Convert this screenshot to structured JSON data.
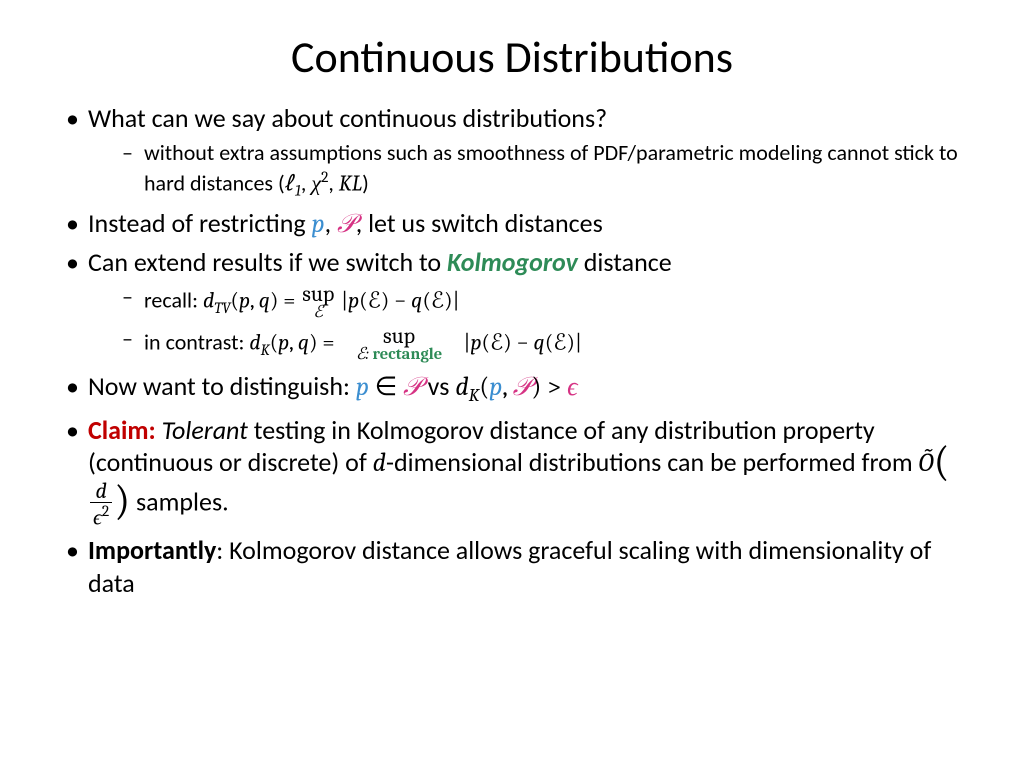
{
  "title": "Continuous Distributions",
  "b1": {
    "text": "What can we say about continuous distributions?",
    "sub1_a": "without extra assumptions such as smoothness of PDF/parametric modeling cannot stick to hard distances ("
  },
  "b2": {
    "a": "Instead of restricting ",
    "b": ", ",
    "c": ", let us switch distances"
  },
  "b3": {
    "a": "Can extend results if we switch to ",
    "kolmogorov": "Kolmogorov",
    "b": " distance",
    "sub1_a": "recall: ",
    "sub2_a": " in contrast: "
  },
  "b4": {
    "a": "Now  want to distinguish: ",
    "vs": "   vs  "
  },
  "b5": {
    "claim": "Claim:",
    "a": " Tolerant",
    "b": " testing in Kolmogorov distance of any distribution property (continuous or discrete) of ",
    "c": "-dimensional distributions can be performed from ",
    "d": " samples."
  },
  "b6": {
    "imp": "Importantly",
    "a": ": Kolmogorov distance allows graceful scaling with dimensionality of data"
  },
  "colors": {
    "blue": "#3b8ed0",
    "magenta": "#d63384",
    "green": "#2e8b57",
    "darkred": "#c00000",
    "text": "#000000",
    "bg": "#ffffff"
  }
}
